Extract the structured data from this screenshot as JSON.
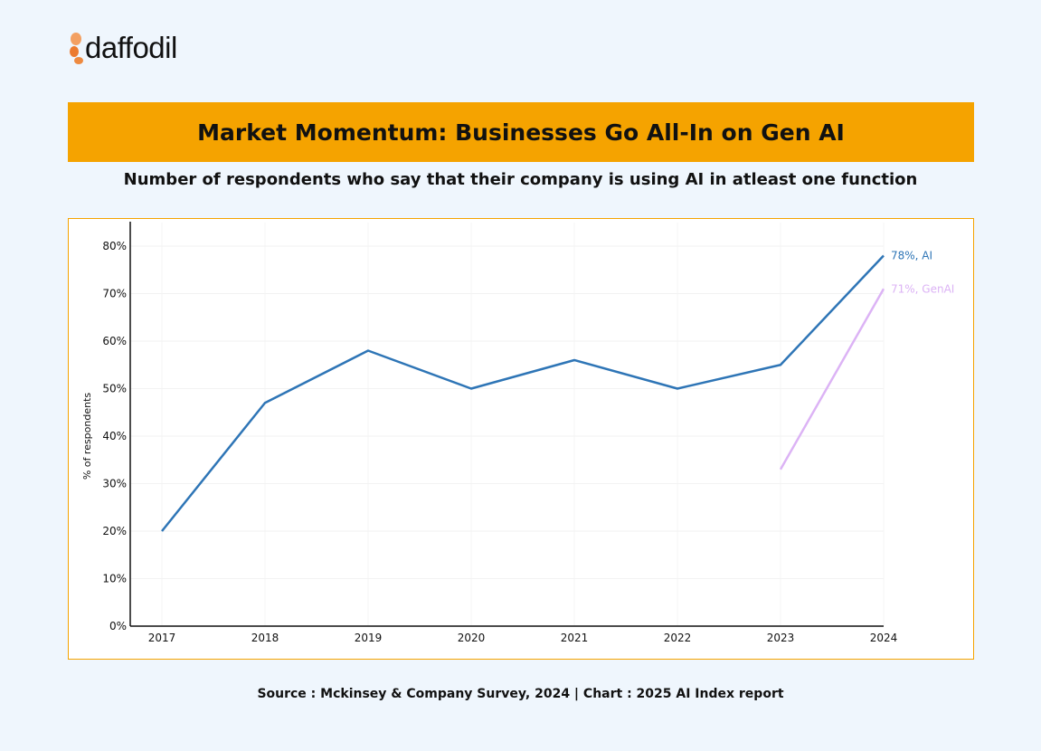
{
  "logo": {
    "text": "daffodil",
    "icon": "daffodil-flower-icon",
    "icon_color": "#f0873a"
  },
  "banner": {
    "title": "Market Momentum: Businesses Go All-In on Gen AI",
    "color": "#f5a300"
  },
  "subtitle": "Number of respondents who say that their company is using AI in atleast one function",
  "source": "Source : Mckinsey & Company Survey, 2024 | Chart : 2025 AI Index report",
  "chart_data": {
    "type": "line",
    "x": [
      "2017",
      "2018",
      "2019",
      "2020",
      "2021",
      "2022",
      "2023",
      "2024"
    ],
    "ylabel": "% of respondents",
    "xlabel": "",
    "ylim": [
      0,
      80
    ],
    "yticks": [
      "0%",
      "10%",
      "20%",
      "30%",
      "40%",
      "50%",
      "60%",
      "70%",
      "80%"
    ],
    "grid": true,
    "series": [
      {
        "name": "AI",
        "color": "#2e75b6",
        "values": [
          20,
          47,
          58,
          50,
          56,
          50,
          55,
          78
        ],
        "end_label": "78%, AI"
      },
      {
        "name": "GenAI",
        "color": "#dcb3f5",
        "values": [
          null,
          null,
          null,
          null,
          null,
          null,
          33,
          71
        ],
        "end_label": "71%, GenAI"
      }
    ]
  }
}
